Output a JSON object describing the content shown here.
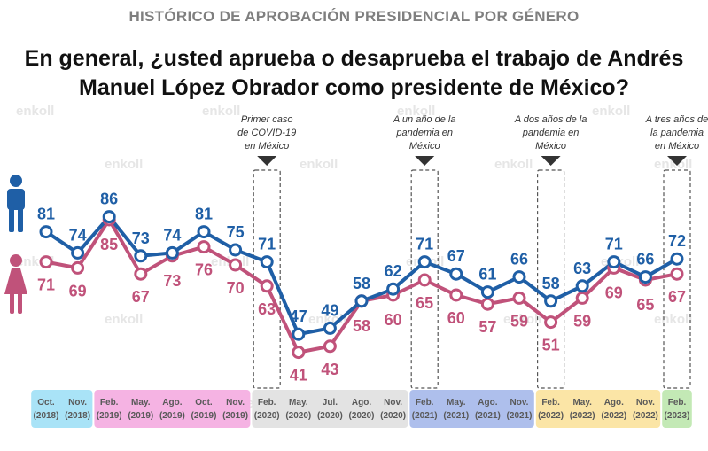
{
  "supertitle": "HISTÓRICO DE APROBACIÓN PRESIDENCIAL POR GÉNERO",
  "title_line1": "En general, ¿usted aprueba o desaprueba el trabajo de Andrés",
  "title_line2": "Manuel López Obrador como presidente de México?",
  "watermark": "enkoll",
  "colors": {
    "men": "#1f5fa6",
    "women": "#c0527a"
  },
  "icons": {
    "men": "man-icon",
    "women": "woman-icon"
  },
  "annotations": [
    {
      "index": 7,
      "lines": [
        "Primer caso",
        "de COVID-19",
        "en México"
      ]
    },
    {
      "index": 12,
      "lines": [
        "A un año de la",
        "pandemia en",
        "México"
      ]
    },
    {
      "index": 16,
      "lines": [
        "A dos años de la",
        "pandemia en",
        "México"
      ]
    },
    {
      "index": 20,
      "lines": [
        "A tres años de",
        "la pandemia",
        "en México"
      ]
    }
  ],
  "chart_data": {
    "type": "line",
    "x": [
      {
        "month": "Oct.",
        "year": "(2018)"
      },
      {
        "month": "Nov.",
        "year": "(2018)"
      },
      {
        "month": "Feb.",
        "year": "(2019)"
      },
      {
        "month": "May.",
        "year": "(2019)"
      },
      {
        "month": "Ago.",
        "year": "(2019)"
      },
      {
        "month": "Oct.",
        "year": "(2019)"
      },
      {
        "month": "Nov.",
        "year": "(2019)"
      },
      {
        "month": "Feb.",
        "year": "(2020)"
      },
      {
        "month": "May.",
        "year": "(2020)"
      },
      {
        "month": "Jul.",
        "year": "(2020)"
      },
      {
        "month": "Ago.",
        "year": "(2020)"
      },
      {
        "month": "Nov.",
        "year": "(2020)"
      },
      {
        "month": "Feb.",
        "year": "(2021)"
      },
      {
        "month": "May.",
        "year": "(2021)"
      },
      {
        "month": "Ago.",
        "year": "(2021)"
      },
      {
        "month": "Nov.",
        "year": "(2021)"
      },
      {
        "month": "Feb.",
        "year": "(2022)"
      },
      {
        "month": "May.",
        "year": "(2022)"
      },
      {
        "month": "Ago.",
        "year": "(2022)"
      },
      {
        "month": "Nov.",
        "year": "(2022)"
      },
      {
        "month": "Feb.",
        "year": "(2023)"
      }
    ],
    "series": [
      {
        "values": [
          81,
          74,
          86,
          73,
          74,
          81,
          75,
          71,
          47,
          49,
          58,
          62,
          71,
          67,
          61,
          66,
          58,
          63,
          71,
          66,
          72
        ]
      },
      {
        "values": [
          71,
          69,
          85,
          67,
          73,
          76,
          70,
          63,
          41,
          43,
          58,
          60,
          65,
          60,
          57,
          59,
          51,
          59,
          69,
          65,
          67
        ]
      }
    ],
    "year_colors": {
      "(2018)": "#a9e3f7",
      "(2019)": "#f5b3e3",
      "(2020)": "#e3e3e3",
      "(2021)": "#aebfec",
      "(2022)": "#fbe5a6",
      "(2023)": "#c3e9b5"
    }
  }
}
